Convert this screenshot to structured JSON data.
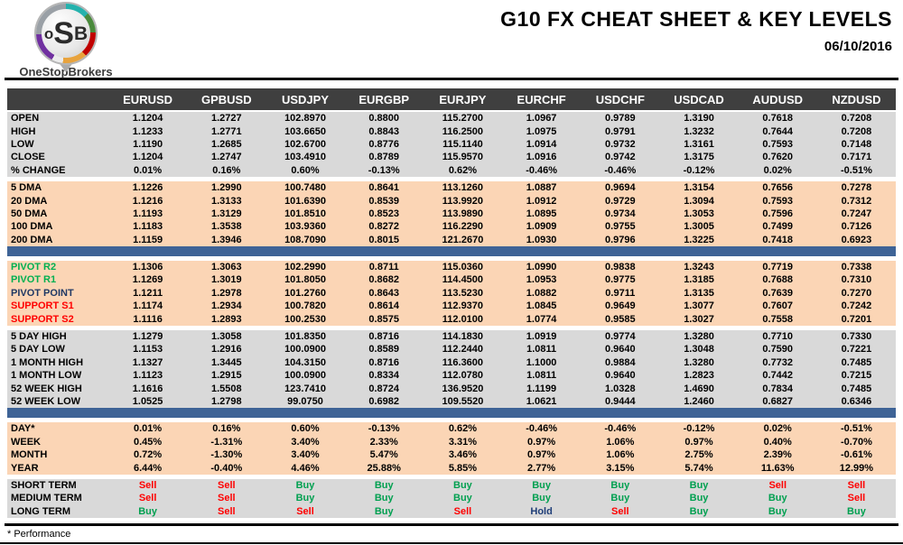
{
  "header": {
    "logo": {
      "letter_o": "o",
      "letter_s": "S",
      "letter_b": "B",
      "brand": "OneStopBrokers"
    },
    "title": "G10 FX CHEAT SHEET & KEY LEVELS",
    "date": "06/10/2016"
  },
  "colors": {
    "header_bg": "#3f3f3f",
    "gray_band": "#d9d9d9",
    "peach_band": "#fbd5b5",
    "blue_bar": "#3e6396",
    "pivot_resistance_label": "#00b050",
    "pivot_point_label": "#1f3864",
    "support_label": "#ff0000",
    "signal": {
      "Buy": "#00a050",
      "Sell": "#ff0000",
      "Hold": "#1f3e78"
    }
  },
  "table": {
    "columns": [
      "EURUSD",
      "GPBUSD",
      "USDJPY",
      "EURGBP",
      "EURJPY",
      "EURCHF",
      "USDCHF",
      "USDCAD",
      "AUDUSD",
      "NZDUSD"
    ],
    "sections": [
      {
        "name": "ohlc",
        "rows": [
          {
            "label": "OPEN",
            "values": [
              "1.1204",
              "1.2727",
              "102.8970",
              "0.8800",
              "115.2700",
              "1.0967",
              "0.9789",
              "1.3190",
              "0.7618",
              "0.7208"
            ]
          },
          {
            "label": "HIGH",
            "values": [
              "1.1233",
              "1.2771",
              "103.6650",
              "0.8843",
              "116.2500",
              "1.0975",
              "0.9791",
              "1.3232",
              "0.7644",
              "0.7208"
            ]
          },
          {
            "label": "LOW",
            "values": [
              "1.1190",
              "1.2685",
              "102.6700",
              "0.8776",
              "115.1140",
              "1.0914",
              "0.9732",
              "1.3161",
              "0.7593",
              "0.7148"
            ]
          },
          {
            "label": "CLOSE",
            "values": [
              "1.1204",
              "1.2747",
              "103.4910",
              "0.8789",
              "115.9570",
              "1.0916",
              "0.9742",
              "1.3175",
              "0.7620",
              "0.7171"
            ]
          },
          {
            "label": "% CHANGE",
            "values": [
              "0.01%",
              "0.16%",
              "0.60%",
              "-0.13%",
              "0.62%",
              "-0.46%",
              "-0.46%",
              "-0.12%",
              "0.02%",
              "-0.51%"
            ]
          }
        ]
      },
      {
        "name": "moving-averages",
        "rows": [
          {
            "label": "5 DMA",
            "values": [
              "1.1226",
              "1.2990",
              "100.7480",
              "0.8641",
              "113.1260",
              "1.0887",
              "0.9694",
              "1.3154",
              "0.7656",
              "0.7278"
            ]
          },
          {
            "label": "20 DMA",
            "values": [
              "1.1216",
              "1.3133",
              "101.6390",
              "0.8539",
              "113.9920",
              "1.0912",
              "0.9729",
              "1.3094",
              "0.7593",
              "0.7312"
            ]
          },
          {
            "label": "50 DMA",
            "values": [
              "1.1193",
              "1.3129",
              "101.8510",
              "0.8523",
              "113.9890",
              "1.0895",
              "0.9734",
              "1.3053",
              "0.7596",
              "0.7247"
            ]
          },
          {
            "label": "100 DMA",
            "values": [
              "1.1183",
              "1.3538",
              "103.9360",
              "0.8272",
              "116.2290",
              "1.0909",
              "0.9755",
              "1.3005",
              "0.7499",
              "0.7126"
            ]
          },
          {
            "label": "200 DMA",
            "values": [
              "1.1159",
              "1.3946",
              "108.7090",
              "0.8015",
              "121.2670",
              "1.0930",
              "0.9796",
              "1.3225",
              "0.7418",
              "0.6923"
            ]
          }
        ]
      },
      {
        "name": "pivots",
        "rows": [
          {
            "label": "PIVOT R2",
            "label_color": "#00b050",
            "values": [
              "1.1306",
              "1.3063",
              "102.2990",
              "0.8711",
              "115.0360",
              "1.0990",
              "0.9838",
              "1.3243",
              "0.7719",
              "0.7338"
            ]
          },
          {
            "label": "PIVOT R1",
            "label_color": "#00b050",
            "values": [
              "1.1269",
              "1.3019",
              "101.8050",
              "0.8682",
              "114.4500",
              "1.0953",
              "0.9775",
              "1.3185",
              "0.7688",
              "0.7310"
            ]
          },
          {
            "label": "PIVOT POINT",
            "label_color": "#1f3864",
            "values": [
              "1.1211",
              "1.2978",
              "101.2760",
              "0.8643",
              "113.5230",
              "1.0882",
              "0.9711",
              "1.3135",
              "0.7639",
              "0.7270"
            ]
          },
          {
            "label": "SUPPORT S1",
            "label_color": "#ff0000",
            "values": [
              "1.1174",
              "1.2934",
              "100.7820",
              "0.8614",
              "112.9370",
              "1.0845",
              "0.9649",
              "1.3077",
              "0.7607",
              "0.7242"
            ]
          },
          {
            "label": "SUPPORT S2",
            "label_color": "#ff0000",
            "values": [
              "1.1116",
              "1.2893",
              "100.2530",
              "0.8575",
              "112.0100",
              "1.0774",
              "0.9585",
              "1.3027",
              "0.7558",
              "0.7201"
            ]
          }
        ]
      },
      {
        "name": "ranges",
        "rows": [
          {
            "label": "5 DAY HIGH",
            "values": [
              "1.1279",
              "1.3058",
              "101.8350",
              "0.8716",
              "114.1830",
              "1.0919",
              "0.9774",
              "1.3280",
              "0.7710",
              "0.7330"
            ]
          },
          {
            "label": "5 DAY LOW",
            "values": [
              "1.1153",
              "1.2916",
              "100.0900",
              "0.8589",
              "112.2440",
              "1.0811",
              "0.9640",
              "1.3048",
              "0.7590",
              "0.7221"
            ]
          },
          {
            "label": "1 MONTH HIGH",
            "values": [
              "1.1327",
              "1.3445",
              "104.3150",
              "0.8716",
              "116.3600",
              "1.1000",
              "0.9884",
              "1.3280",
              "0.7732",
              "0.7485"
            ]
          },
          {
            "label": "1 MONTH LOW",
            "values": [
              "1.1123",
              "1.2915",
              "100.0900",
              "0.8334",
              "112.0780",
              "1.0811",
              "0.9640",
              "1.2823",
              "0.7442",
              "0.7215"
            ]
          },
          {
            "label": "52 WEEK HIGH",
            "values": [
              "1.1616",
              "1.5508",
              "123.7410",
              "0.8724",
              "136.9520",
              "1.1199",
              "1.0328",
              "1.4690",
              "0.7834",
              "0.7485"
            ]
          },
          {
            "label": "52 WEEK LOW",
            "values": [
              "1.0525",
              "1.2798",
              "99.0750",
              "0.6982",
              "109.5520",
              "1.0621",
              "0.9444",
              "1.2460",
              "0.6827",
              "0.6346"
            ]
          }
        ]
      },
      {
        "name": "performance",
        "rows": [
          {
            "label": "DAY*",
            "values": [
              "0.01%",
              "0.16%",
              "0.60%",
              "-0.13%",
              "0.62%",
              "-0.46%",
              "-0.46%",
              "-0.12%",
              "0.02%",
              "-0.51%"
            ]
          },
          {
            "label": "WEEK",
            "values": [
              "0.45%",
              "-1.31%",
              "3.40%",
              "2.33%",
              "3.31%",
              "0.97%",
              "1.06%",
              "0.97%",
              "0.40%",
              "-0.70%"
            ]
          },
          {
            "label": "MONTH",
            "values": [
              "0.72%",
              "-1.30%",
              "3.40%",
              "5.47%",
              "3.46%",
              "0.97%",
              "1.06%",
              "2.75%",
              "2.39%",
              "-0.61%"
            ]
          },
          {
            "label": "YEAR",
            "values": [
              "6.44%",
              "-0.40%",
              "4.46%",
              "25.88%",
              "5.85%",
              "2.77%",
              "3.15%",
              "5.74%",
              "11.63%",
              "12.99%"
            ]
          }
        ]
      },
      {
        "name": "signals",
        "type": "signals",
        "rows": [
          {
            "label": "SHORT TERM",
            "values": [
              "Sell",
              "Sell",
              "Buy",
              "Buy",
              "Buy",
              "Buy",
              "Buy",
              "Buy",
              "Sell",
              "Sell"
            ]
          },
          {
            "label": "MEDIUM TERM",
            "values": [
              "Sell",
              "Sell",
              "Buy",
              "Buy",
              "Buy",
              "Buy",
              "Buy",
              "Buy",
              "Buy",
              "Sell"
            ]
          },
          {
            "label": "LONG TERM",
            "values": [
              "Buy",
              "Sell",
              "Sell",
              "Buy",
              "Sell",
              "Hold",
              "Sell",
              "Buy",
              "Buy",
              "Buy"
            ]
          }
        ]
      }
    ]
  },
  "footnote": "* Performance"
}
